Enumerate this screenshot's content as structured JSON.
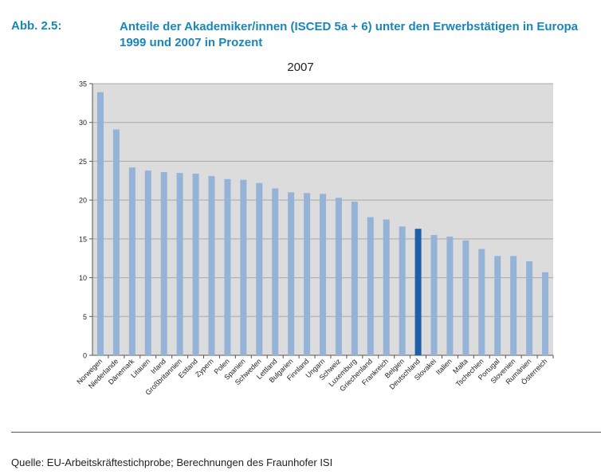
{
  "figure": {
    "label": "Abb. 2.5:",
    "title": "Anteile der Akademiker/innen (ISCED 5a + 6) unter den Erwerbstätigen in Europa 1999 und 2007 in Prozent"
  },
  "source": "Quelle: EU-Arbeitskräftestichprobe; Berechnungen des Fraunhofer ISI",
  "colors": {
    "bar": "#95b3d7",
    "highlight": "#1f5fa8",
    "plot_bg": "#dcdcdc",
    "grid": "#a8a8a8",
    "title": "#1a86b8"
  },
  "chart_data": {
    "type": "bar",
    "title": "2007",
    "xlabel": "",
    "ylabel": "",
    "ylim": [
      0,
      35
    ],
    "yticks": [
      0,
      5,
      10,
      15,
      20,
      25,
      30,
      35
    ],
    "grid": true,
    "legend": "none",
    "highlight": "Deutschland",
    "categories": [
      "Norwegen",
      "Niederlande",
      "Dänemark",
      "Litauen",
      "Irland",
      "Großbritannien",
      "Estland",
      "Zypern",
      "Polen",
      "Spanien",
      "Schweden",
      "Lettland",
      "Bulgarien",
      "Finnland",
      "Ungarn",
      "Schweiz",
      "Luxemburg",
      "Griechenland",
      "Frankreich",
      "Belgien",
      "Deutschland",
      "Slovakei",
      "Italien",
      "Malta",
      "Tschechien",
      "Portugal",
      "Slovenien",
      "Rumänien",
      "Österreich"
    ],
    "values": [
      33.9,
      29.1,
      24.2,
      23.8,
      23.6,
      23.5,
      23.4,
      23.1,
      22.7,
      22.6,
      22.2,
      21.5,
      21.0,
      20.9,
      20.8,
      20.3,
      19.8,
      17.8,
      17.5,
      16.6,
      16.3,
      15.5,
      15.3,
      14.8,
      13.7,
      12.8,
      12.8,
      12.1,
      10.7
    ]
  }
}
